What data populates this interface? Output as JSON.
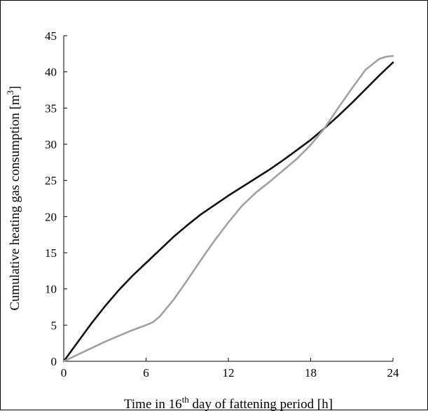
{
  "chart_data": {
    "type": "line",
    "xlabel": {
      "prefix": "Time in 16",
      "superscript": "th",
      "suffix": " day of fattening period [h]"
    },
    "ylabel": {
      "prefix": "Cumulative heating gas consumption [m",
      "superscript": "3",
      "suffix": "]"
    },
    "xlim": [
      0,
      24
    ],
    "ylim": [
      0,
      45
    ],
    "xticks": [
      0,
      6,
      12,
      18,
      24
    ],
    "yticks": [
      0,
      5,
      10,
      15,
      20,
      25,
      30,
      35,
      40,
      45
    ],
    "grid": false,
    "legend": null,
    "series": [
      {
        "color": "#111111",
        "x": [
          0,
          1,
          2,
          3,
          4,
          5,
          6,
          7,
          8,
          9,
          10,
          11,
          12,
          13,
          14,
          15,
          16,
          17,
          18,
          19,
          20,
          21,
          22,
          23,
          24
        ],
        "y": [
          0,
          2.6,
          5.2,
          7.6,
          9.8,
          11.8,
          13.6,
          15.4,
          17.2,
          18.8,
          20.3,
          21.6,
          22.9,
          24.1,
          25.3,
          26.5,
          27.8,
          29.2,
          30.6,
          32.2,
          33.9,
          35.7,
          37.6,
          39.5,
          41.3
        ]
      },
      {
        "color": "#a0a0a0",
        "x": [
          0,
          1,
          2,
          3,
          4,
          5,
          6,
          6.5,
          7,
          8,
          9,
          10,
          11,
          12,
          13,
          14,
          15,
          16,
          17,
          18,
          19,
          20,
          21,
          22,
          23,
          23.5,
          24
        ],
        "y": [
          0,
          0.9,
          1.8,
          2.7,
          3.5,
          4.3,
          5.0,
          5.4,
          6.2,
          8.5,
          11.2,
          14.0,
          16.7,
          19.2,
          21.5,
          23.3,
          24.8,
          26.4,
          28.0,
          29.9,
          32.2,
          35.0,
          37.7,
          40.3,
          41.8,
          42.1,
          42.2
        ]
      }
    ]
  }
}
